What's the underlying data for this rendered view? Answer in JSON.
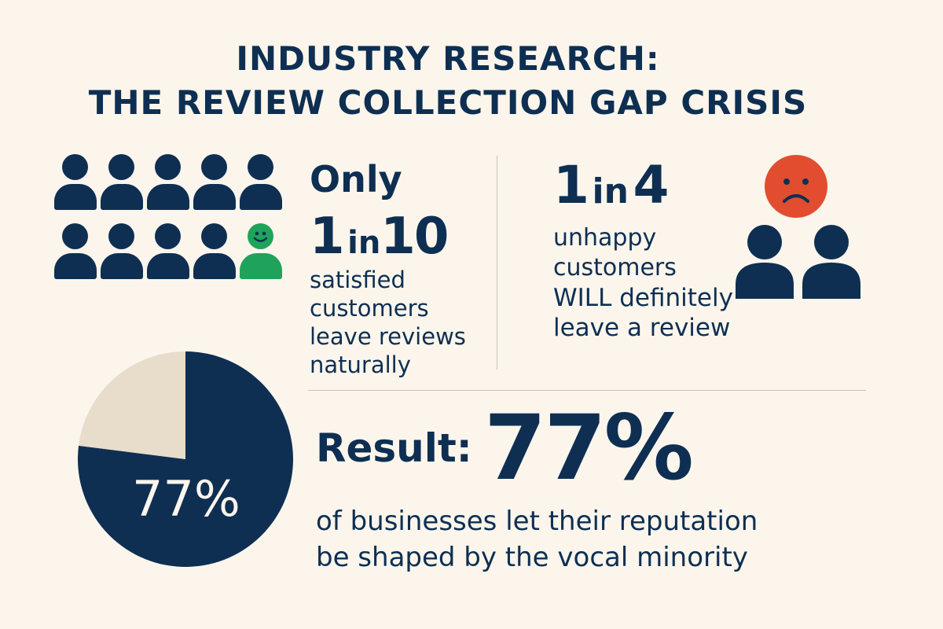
{
  "title": {
    "line1": "INDUSTRY RESEARCH:",
    "line2": "THE REVIEW COLLECTION GAP CRISIS"
  },
  "left_stat": {
    "prefix": "Only",
    "numerator": "1",
    "connector": "in",
    "denominator": "10",
    "description": "satisfied customers leave reviews naturally",
    "icons": {
      "people_count": 10,
      "happy_index": 9,
      "person_color": "#0e2f52",
      "happy_color": "#1fa35a",
      "icon": "person-icon",
      "happy_icon": "smiling-person-icon"
    }
  },
  "right_stat": {
    "numerator": "1",
    "connector": "in",
    "denominator": "4",
    "description_line1": "unhappy",
    "description_line2": "customers",
    "description_line3": "WILL definitely",
    "description_line4": "leave a review",
    "icons": {
      "sad_face": "sad-face-icon",
      "sad_color": "#e24d30",
      "people": "person-icon"
    }
  },
  "result": {
    "label": "Result:",
    "value": "77%",
    "description_line1": "of businesses let their reputation",
    "description_line2": "be shaped by the vocal minority"
  },
  "chart_data": {
    "type": "pie",
    "slices": [
      {
        "label": "77%",
        "value": 77,
        "color": "#0e2f52"
      },
      {
        "value": 23,
        "color": "#e8dccb"
      }
    ]
  },
  "colors": {
    "background": "#fbf5ec",
    "navy": "#0e2f52",
    "green": "#1fa35a",
    "red": "#e24d30",
    "beige": "#e8dccb"
  }
}
